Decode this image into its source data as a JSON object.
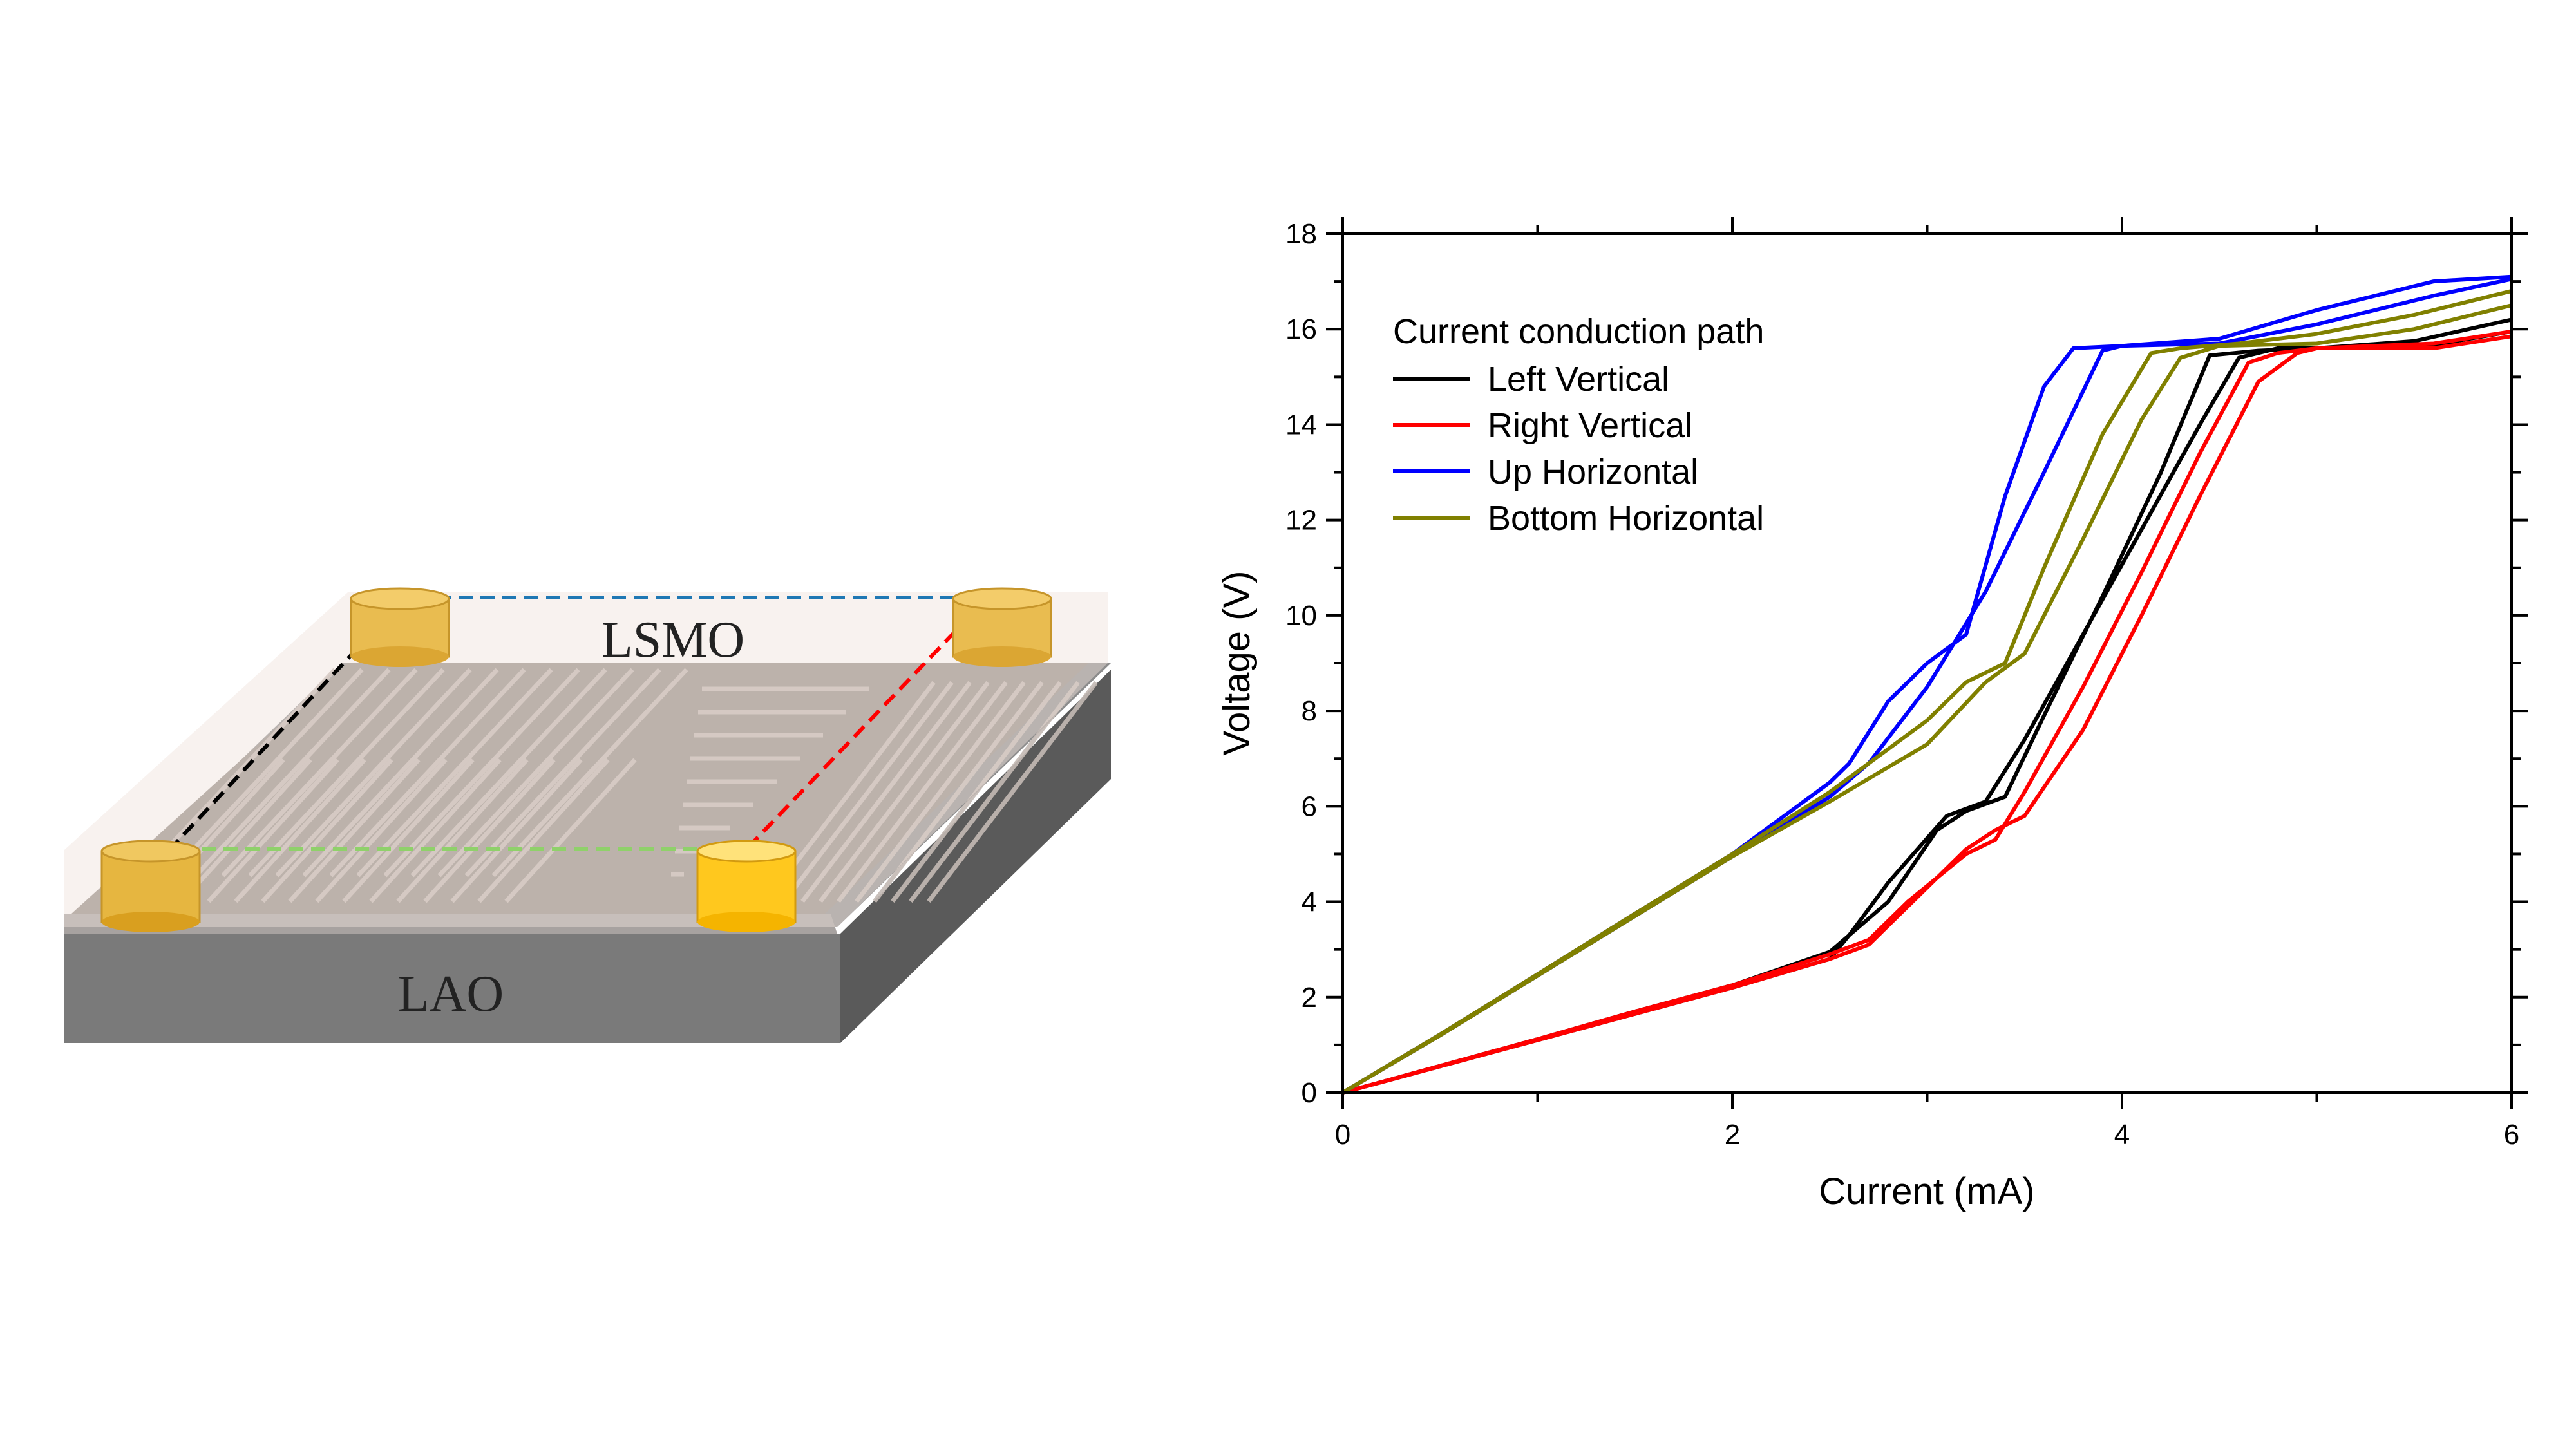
{
  "diagram": {
    "film_label": "LSMO",
    "substrate_label": "LAO",
    "colors": {
      "substrate_top": "#8a8a8a",
      "substrate_front": "#7a7a7a",
      "substrate_side": "#5a5a5a",
      "film": "#8f8680",
      "film_overlay": "#efe6e0",
      "electrode": "#e8b84a",
      "electrode_bright": "#ffc81e",
      "path_left": "#000000",
      "path_right": "#ff0000",
      "path_up": "#1f78b4",
      "path_bottom": "#8fd16a"
    }
  },
  "chart_data": {
    "type": "line",
    "title": "",
    "xlabel": "Current (mA)",
    "ylabel": "Voltage (V)",
    "xlim": [
      0,
      6
    ],
    "ylim": [
      0,
      18
    ],
    "xticks": [
      0,
      2,
      4,
      6
    ],
    "yticks": [
      0,
      2,
      4,
      6,
      8,
      10,
      12,
      14,
      16,
      18
    ],
    "grid": false,
    "legend": {
      "title": "Current conduction path",
      "placement": "top-left"
    },
    "series": [
      {
        "name": "Left Vertical",
        "color": "#000000",
        "forward": [
          [
            0,
            0
          ],
          [
            0.5,
            0.55
          ],
          [
            1.0,
            1.1
          ],
          [
            1.5,
            1.65
          ],
          [
            2.0,
            2.2
          ],
          [
            2.5,
            2.8
          ],
          [
            2.6,
            3.3
          ],
          [
            2.8,
            4.4
          ],
          [
            3.1,
            5.8
          ],
          [
            3.3,
            6.1
          ],
          [
            3.5,
            7.4
          ],
          [
            3.8,
            9.6
          ],
          [
            4.1,
            11.8
          ],
          [
            4.4,
            14.0
          ],
          [
            4.6,
            15.4
          ],
          [
            4.8,
            15.6
          ],
          [
            5.0,
            15.6
          ],
          [
            5.5,
            15.6
          ],
          [
            6.0,
            15.95
          ]
        ],
        "reverse": [
          [
            6.0,
            16.2
          ],
          [
            5.5,
            15.75
          ],
          [
            5.0,
            15.6
          ],
          [
            4.7,
            15.55
          ],
          [
            4.45,
            15.45
          ],
          [
            4.2,
            13.0
          ],
          [
            3.9,
            10.4
          ],
          [
            3.6,
            7.9
          ],
          [
            3.4,
            6.2
          ],
          [
            3.2,
            5.9
          ],
          [
            3.05,
            5.5
          ],
          [
            2.8,
            4.0
          ],
          [
            2.5,
            2.95
          ],
          [
            2.0,
            2.25
          ],
          [
            1.5,
            1.7
          ],
          [
            1.0,
            1.12
          ],
          [
            0.5,
            0.56
          ],
          [
            0,
            0
          ]
        ]
      },
      {
        "name": "Right Vertical",
        "color": "#ff0000",
        "forward": [
          [
            0,
            0
          ],
          [
            0.5,
            0.55
          ],
          [
            1.0,
            1.1
          ],
          [
            1.5,
            1.65
          ],
          [
            2.0,
            2.2
          ],
          [
            2.5,
            2.8
          ],
          [
            2.7,
            3.1
          ],
          [
            2.9,
            3.9
          ],
          [
            3.2,
            5.1
          ],
          [
            3.35,
            5.5
          ],
          [
            3.5,
            5.8
          ],
          [
            3.8,
            7.6
          ],
          [
            4.1,
            10.0
          ],
          [
            4.4,
            12.5
          ],
          [
            4.7,
            14.9
          ],
          [
            4.9,
            15.5
          ],
          [
            5.0,
            15.6
          ],
          [
            5.6,
            15.6
          ],
          [
            6.0,
            15.85
          ]
        ],
        "reverse": [
          [
            6.0,
            15.95
          ],
          [
            5.6,
            15.7
          ],
          [
            5.0,
            15.6
          ],
          [
            4.8,
            15.5
          ],
          [
            4.65,
            15.3
          ],
          [
            4.4,
            13.4
          ],
          [
            4.1,
            10.9
          ],
          [
            3.8,
            8.5
          ],
          [
            3.5,
            6.3
          ],
          [
            3.35,
            5.3
          ],
          [
            3.2,
            5.0
          ],
          [
            2.9,
            4.0
          ],
          [
            2.7,
            3.2
          ],
          [
            2.5,
            2.9
          ],
          [
            2.0,
            2.25
          ],
          [
            1.5,
            1.7
          ],
          [
            1.0,
            1.12
          ],
          [
            0.5,
            0.56
          ],
          [
            0,
            0
          ]
        ]
      },
      {
        "name": "Up Horizontal",
        "color": "#0000ff",
        "forward": [
          [
            0,
            0
          ],
          [
            0.5,
            1.2
          ],
          [
            1.0,
            2.45
          ],
          [
            1.5,
            3.7
          ],
          [
            2.0,
            4.95
          ],
          [
            2.5,
            6.2
          ],
          [
            2.7,
            6.9
          ],
          [
            3.0,
            8.5
          ],
          [
            3.3,
            10.5
          ],
          [
            3.6,
            13.0
          ],
          [
            3.9,
            15.55
          ],
          [
            4.0,
            15.65
          ],
          [
            4.5,
            15.7
          ],
          [
            5.0,
            16.1
          ],
          [
            5.6,
            16.7
          ],
          [
            6.0,
            17.05
          ]
        ],
        "reverse": [
          [
            6.0,
            17.1
          ],
          [
            5.6,
            17.0
          ],
          [
            5.0,
            16.4
          ],
          [
            4.5,
            15.8
          ],
          [
            4.0,
            15.65
          ],
          [
            3.75,
            15.6
          ],
          [
            3.6,
            14.8
          ],
          [
            3.4,
            12.5
          ],
          [
            3.2,
            9.6
          ],
          [
            3.0,
            9.0
          ],
          [
            2.8,
            8.2
          ],
          [
            2.6,
            6.9
          ],
          [
            2.5,
            6.5
          ],
          [
            2.0,
            5.0
          ],
          [
            1.5,
            3.75
          ],
          [
            1.0,
            2.48
          ],
          [
            0.5,
            1.22
          ],
          [
            0,
            0
          ]
        ]
      },
      {
        "name": "Bottom Horizontal",
        "color": "#808000",
        "forward": [
          [
            0,
            0
          ],
          [
            0.5,
            1.2
          ],
          [
            1.0,
            2.45
          ],
          [
            1.5,
            3.7
          ],
          [
            2.0,
            4.95
          ],
          [
            2.5,
            6.1
          ],
          [
            3.0,
            7.3
          ],
          [
            3.3,
            8.6
          ],
          [
            3.5,
            9.2
          ],
          [
            3.8,
            11.6
          ],
          [
            4.1,
            14.1
          ],
          [
            4.3,
            15.4
          ],
          [
            4.5,
            15.65
          ],
          [
            5.0,
            15.7
          ],
          [
            5.5,
            16.0
          ],
          [
            6.0,
            16.5
          ]
        ],
        "reverse": [
          [
            6.0,
            16.8
          ],
          [
            5.5,
            16.3
          ],
          [
            5.0,
            15.9
          ],
          [
            4.6,
            15.7
          ],
          [
            4.3,
            15.6
          ],
          [
            4.15,
            15.5
          ],
          [
            3.9,
            13.8
          ],
          [
            3.6,
            11.0
          ],
          [
            3.4,
            9.0
          ],
          [
            3.2,
            8.6
          ],
          [
            3.0,
            7.8
          ],
          [
            2.5,
            6.3
          ],
          [
            2.0,
            5.0
          ],
          [
            1.5,
            3.75
          ],
          [
            1.0,
            2.48
          ],
          [
            0.5,
            1.22
          ],
          [
            0,
            0
          ]
        ]
      }
    ]
  }
}
